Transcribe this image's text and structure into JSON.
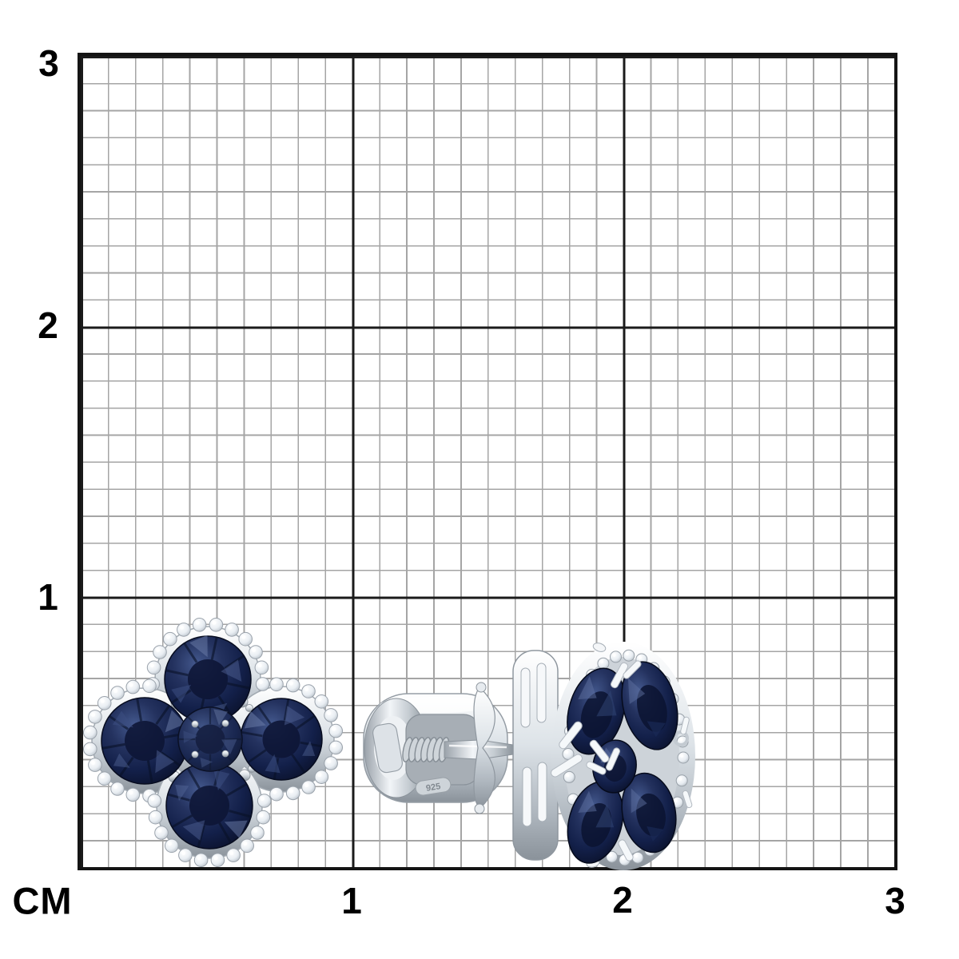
{
  "ruler": {
    "unit": "CM",
    "x_ticks": [
      "1",
      "2",
      "3"
    ],
    "y_ticks": [
      "3",
      "2",
      "1"
    ],
    "minor_cells_per_cm": 10,
    "range_cm": 3
  },
  "product": {
    "kind": "clover-shaped stud earrings with blue sapphires and diamond halo, white metal",
    "views": [
      "front",
      "side with screw-back clasp"
    ],
    "hallmark": "925",
    "large_sapphires_per_earring": 4,
    "center_sapphire_per_earring": 1
  },
  "colors": {
    "bg": "#ffffff",
    "grid-minor": "#a5a5a5",
    "grid-major": "#1b1b1b",
    "grid-border": "#141414",
    "label": "#000000",
    "sapphire-dark": "#0a1128",
    "sapphire-mid": "#1d2b55",
    "sapphire-light": "#44588c",
    "metal-light": "#f6f8fa",
    "metal-mid": "#ccd2d8",
    "metal-dark": "#8e969e",
    "diamond-white": "#f0f4f8"
  }
}
